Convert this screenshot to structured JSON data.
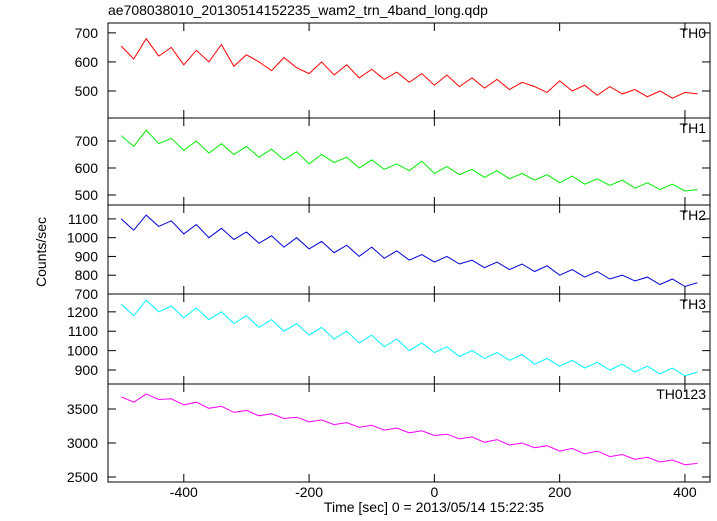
{
  "chart_data": {
    "type": "line",
    "title": "ae708038010_20130514152235_wam2_trn_4band_long.qdp",
    "x_label": "Time [sec] 0 = 2013/05/14 15:22:35",
    "y_label": "Counts/sec",
    "xlim": [
      -521,
      440
    ],
    "xticks": [
      -400,
      -200,
      0,
      200,
      400
    ],
    "x": [
      -500,
      -480,
      -460,
      -440,
      -420,
      -400,
      -380,
      -360,
      -340,
      -320,
      -300,
      -280,
      -260,
      -240,
      -220,
      -200,
      -180,
      -160,
      -140,
      -120,
      -100,
      -80,
      -60,
      -40,
      -20,
      0,
      20,
      40,
      60,
      80,
      100,
      120,
      140,
      160,
      180,
      200,
      220,
      240,
      260,
      280,
      300,
      320,
      340,
      360,
      380,
      400,
      420
    ],
    "series": [
      {
        "name": "TH0",
        "color": "#ff0000",
        "ylim": [
          407,
          734
        ],
        "yticks": [
          500,
          600,
          700
        ],
        "values": [
          655,
          610,
          680,
          620,
          650,
          590,
          640,
          600,
          660,
          585,
          625,
          600,
          570,
          615,
          580,
          560,
          600,
          555,
          590,
          545,
          575,
          540,
          565,
          530,
          560,
          520,
          555,
          515,
          545,
          510,
          540,
          505,
          530,
          515,
          495,
          535,
          500,
          520,
          485,
          515,
          490,
          505,
          480,
          500,
          475,
          495,
          490
        ]
      },
      {
        "name": "TH1",
        "color": "#00ee00",
        "ylim": [
          463,
          785
        ],
        "yticks": [
          500,
          600,
          700
        ],
        "values": [
          720,
          680,
          740,
          690,
          710,
          665,
          700,
          655,
          690,
          650,
          680,
          640,
          670,
          630,
          660,
          615,
          650,
          620,
          640,
          600,
          630,
          595,
          615,
          590,
          625,
          580,
          605,
          575,
          595,
          565,
          590,
          560,
          580,
          555,
          575,
          545,
          570,
          540,
          560,
          535,
          555,
          525,
          545,
          520,
          540,
          515,
          520
        ]
      },
      {
        "name": "TH2",
        "color": "#0000dd",
        "ylim": [
          700,
          1174
        ],
        "yticks": [
          700,
          800,
          900,
          1000,
          1100
        ],
        "values": [
          1100,
          1040,
          1120,
          1060,
          1090,
          1020,
          1070,
          1000,
          1050,
          990,
          1030,
          970,
          1010,
          950,
          1000,
          940,
          980,
          920,
          960,
          900,
          950,
          890,
          930,
          880,
          910,
          870,
          900,
          860,
          880,
          840,
          870,
          830,
          860,
          820,
          850,
          800,
          830,
          790,
          820,
          780,
          800,
          770,
          790,
          750,
          780,
          740,
          760
        ]
      },
      {
        "name": "TH3",
        "color": "#00ffff",
        "ylim": [
          828,
          1292
        ],
        "yticks": [
          900,
          1000,
          1100,
          1200
        ],
        "values": [
          1240,
          1180,
          1260,
          1200,
          1230,
          1170,
          1220,
          1160,
          1200,
          1140,
          1180,
          1120,
          1160,
          1100,
          1140,
          1080,
          1120,
          1060,
          1100,
          1040,
          1080,
          1020,
          1060,
          1000,
          1040,
          990,
          1020,
          970,
          1000,
          960,
          990,
          950,
          980,
          930,
          960,
          920,
          950,
          910,
          940,
          900,
          930,
          890,
          920,
          880,
          910,
          870,
          890
        ]
      },
      {
        "name": "TH0123",
        "color": "#ff00ff",
        "ylim": [
          2426,
          3868
        ],
        "yticks": [
          2500,
          3000,
          3500
        ],
        "values": [
          3680,
          3600,
          3720,
          3640,
          3650,
          3560,
          3600,
          3510,
          3540,
          3450,
          3480,
          3400,
          3430,
          3360,
          3380,
          3310,
          3340,
          3270,
          3300,
          3230,
          3260,
          3190,
          3220,
          3150,
          3180,
          3110,
          3130,
          3060,
          3090,
          3010,
          3050,
          2970,
          3000,
          2930,
          2960,
          2880,
          2920,
          2840,
          2880,
          2800,
          2830,
          2760,
          2790,
          2720,
          2750,
          2680,
          2700
        ]
      }
    ]
  }
}
